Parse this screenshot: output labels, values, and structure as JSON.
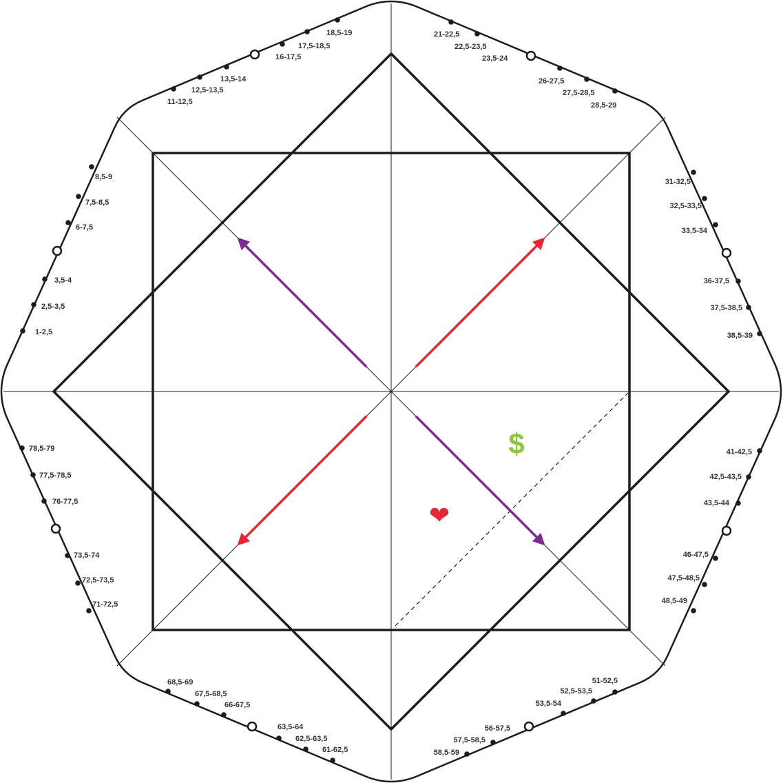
{
  "colors": {
    "line": "#1c1c1c",
    "red_arrow": "#e52635",
    "purple_arrow": "#7b2d8e",
    "dollar": "#8cc63f",
    "heart": "#e52635"
  },
  "symbols": {
    "dollar": "$",
    "heart": "❤"
  },
  "labels": {
    "top_left": [
      "11-12,5",
      "12,5-13,5",
      "13,5-14",
      "16-17,5",
      "17,5-18,5",
      "18,5-19"
    ],
    "top_right": [
      "21-22,5",
      "22,5-23,5",
      "23,5-24",
      "26-27,5",
      "27,5-28,5",
      "28,5-29"
    ],
    "right_upper": [
      "31-32,5",
      "32,5-33,5",
      "33,5-34",
      "36-37,5",
      "37,5-38,5",
      "38,5-39"
    ],
    "right_lower": [
      "41-42,5",
      "42,5-43,5",
      "43,5-44",
      "46-47,5",
      "47,5-48,5",
      "48,5-49"
    ],
    "bottom_right": [
      "51-52,5",
      "52,5-53,5",
      "53,5-54",
      "56-57,5",
      "57,5-58,5",
      "58,5-59"
    ],
    "bottom_left": [
      "61-62,5",
      "62,5-63,5",
      "63,5-64",
      "66-67,5",
      "67,5-68,5",
      "68,5-69"
    ],
    "left_lower": [
      "71-72,5",
      "72,5-73,5",
      "73,5-74",
      "76-77,5",
      "77,5-78,5",
      "78,5-79"
    ],
    "left_upper": [
      "1-2,5",
      "2,5-3,5",
      "3,5-4",
      "6-7,5",
      "7,5-8,5",
      "8,5-9"
    ]
  }
}
